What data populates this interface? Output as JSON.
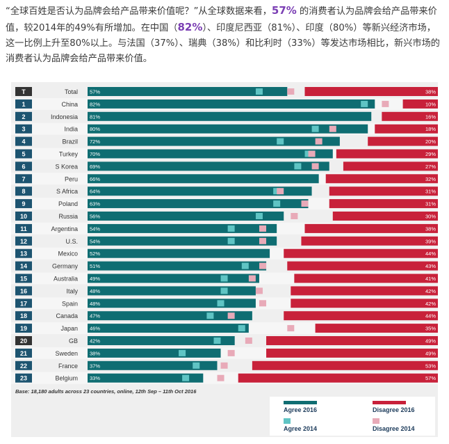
{
  "intro": {
    "p1": "“全球百姓是否认为品牌会给产品带来价值呢？”从全球数据来看，",
    "h1": "57%",
    "p2": " 的消费者认为品牌会给产品带来价值，较2014年的49%有所增加。在中国（",
    "h2": "82%",
    "p3": "）、印度尼西亚（81%）、印度（80%）等新兴经济市场，这一比例上升至80%以上。与法国（37%）、瑞典（38%）和比利时（33%）等发达市场相比，新兴市场的消费者认为品牌会给产品带来价值。"
  },
  "colors": {
    "agree_2016": "#0f6d72",
    "agree_2014": "#5fc4c4",
    "disagree_2016": "#c8213a",
    "disagree_2014": "#e8aab8",
    "rank_box": "#1d5470",
    "rank_box_dark": "#333333",
    "frame_bg": "#efefef"
  },
  "chart_data": {
    "type": "bar",
    "rows": [
      {
        "rank": "T",
        "country": "Total",
        "agree_2016": 57,
        "agree_2014": 49,
        "disagree_2016": 38,
        "disagree_2014": 42
      },
      {
        "rank": "1",
        "country": "China",
        "agree_2016": 82,
        "agree_2014": 79,
        "disagree_2016": 10,
        "disagree_2014": 15
      },
      {
        "rank": "2",
        "country": "Indonesia",
        "agree_2016": 81,
        "agree_2014": null,
        "disagree_2016": 16,
        "disagree_2014": null
      },
      {
        "rank": "3",
        "country": "India",
        "agree_2016": 80,
        "agree_2014": 65,
        "disagree_2016": 18,
        "disagree_2014": 30
      },
      {
        "rank": "4",
        "country": "Brazil",
        "agree_2016": 72,
        "agree_2014": 55,
        "disagree_2016": 20,
        "disagree_2014": 34
      },
      {
        "rank": "5",
        "country": "Turkey",
        "agree_2016": 70,
        "agree_2014": 63,
        "disagree_2016": 29,
        "disagree_2014": 36
      },
      {
        "rank": "6",
        "country": "S Korea",
        "agree_2016": 69,
        "agree_2014": 60,
        "disagree_2016": 27,
        "disagree_2014": 35
      },
      {
        "rank": "7",
        "country": "Peru",
        "agree_2016": 66,
        "agree_2014": null,
        "disagree_2016": 32,
        "disagree_2014": null
      },
      {
        "rank": "8",
        "country": "S Africa",
        "agree_2016": 64,
        "agree_2014": 54,
        "disagree_2016": 31,
        "disagree_2014": 45
      },
      {
        "rank": "9",
        "country": "Poland",
        "agree_2016": 63,
        "agree_2014": 54,
        "disagree_2016": 31,
        "disagree_2014": 38
      },
      {
        "rank": "10",
        "country": "Russia",
        "agree_2016": 56,
        "agree_2014": 49,
        "disagree_2016": 30,
        "disagree_2014": 41
      },
      {
        "rank": "11",
        "country": "Argentina",
        "agree_2016": 54,
        "agree_2014": 41,
        "disagree_2016": 38,
        "disagree_2014": 50
      },
      {
        "rank": "12",
        "country": "U.S.",
        "agree_2016": 54,
        "agree_2014": 41,
        "disagree_2016": 39,
        "disagree_2014": 50
      },
      {
        "rank": "13",
        "country": "Mexico",
        "agree_2016": 52,
        "agree_2014": null,
        "disagree_2016": 44,
        "disagree_2014": null
      },
      {
        "rank": "14",
        "country": "Germany",
        "agree_2016": 51,
        "agree_2014": 45,
        "disagree_2016": 43,
        "disagree_2014": 50
      },
      {
        "rank": "15",
        "country": "Australia",
        "agree_2016": 49,
        "agree_2014": 39,
        "disagree_2016": 41,
        "disagree_2014": 53
      },
      {
        "rank": "16",
        "country": "Italy",
        "agree_2016": 48,
        "agree_2014": 39,
        "disagree_2016": 42,
        "disagree_2014": 51
      },
      {
        "rank": "17",
        "country": "Spain",
        "agree_2016": 48,
        "agree_2014": 38,
        "disagree_2016": 42,
        "disagree_2014": 50
      },
      {
        "rank": "18",
        "country": "Canada",
        "agree_2016": 47,
        "agree_2014": 35,
        "disagree_2016": 44,
        "disagree_2014": 59
      },
      {
        "rank": "19",
        "country": "Japan",
        "agree_2016": 46,
        "agree_2014": 44,
        "disagree_2016": 35,
        "disagree_2014": 42
      },
      {
        "rank": "20",
        "country": "GB",
        "agree_2016": 42,
        "agree_2014": 37,
        "disagree_2016": 49,
        "disagree_2014": 54
      },
      {
        "rank": "21",
        "country": "Sweden",
        "agree_2016": 38,
        "agree_2014": 27,
        "disagree_2016": 49,
        "disagree_2014": 59
      },
      {
        "rank": "22",
        "country": "France",
        "agree_2016": 37,
        "agree_2014": 31,
        "disagree_2016": 53,
        "disagree_2014": 61
      },
      {
        "rank": "23",
        "country": "Belgium",
        "agree_2016": 33,
        "agree_2014": 28,
        "disagree_2016": 57,
        "disagree_2014": 62
      }
    ],
    "dark_rank_rows": [
      "T",
      "20"
    ],
    "xlim": [
      0,
      100
    ],
    "base_note": "Base: 18,180 adults across 23 countries, online, 12th Sep – 11th Oct 2016",
    "legend": {
      "agree_2016": "Agree 2016",
      "disagree_2016": "Disagree 2016",
      "agree_2014": "Agree 2014",
      "disagree_2014": "Disagree 2014"
    },
    "legend_position": "bottom-right"
  }
}
